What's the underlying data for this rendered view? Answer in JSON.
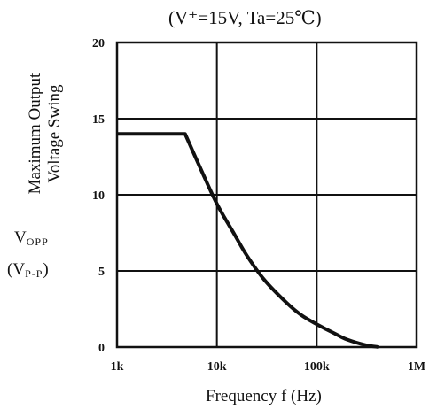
{
  "chart_data": {
    "type": "line",
    "title": "(V⁺=15V, Ta=25℃)",
    "ylabel_line1": "Maximum Output",
    "ylabel_line2": "Voltage Swing",
    "ylabel_symbol_main": "V",
    "ylabel_symbol_sub": "OPP",
    "ylabel_unit_main": "(V",
    "ylabel_unit_sub": "P-P",
    "ylabel_unit_close": ")",
    "xlabel": "Frequency f (Hz)",
    "x_scale": "log",
    "xlim": [
      1000,
      1000000
    ],
    "ylim": [
      0,
      20
    ],
    "x_ticks": [
      1000,
      10000,
      100000,
      1000000
    ],
    "x_tick_labels": [
      "1k",
      "10k",
      "100k",
      "1M"
    ],
    "y_ticks": [
      0,
      5,
      10,
      15,
      20
    ],
    "y_tick_labels": [
      "0",
      "5",
      "10",
      "15",
      "20"
    ],
    "grid": true,
    "series": [
      {
        "color": "#111111",
        "x": [
          1000,
          4800,
          7000,
          10000,
          15000,
          20000,
          30000,
          50000,
          70000,
          100000,
          150000,
          200000,
          300000,
          420000
        ],
        "y": [
          14,
          14,
          11.6,
          9.4,
          7.4,
          6.0,
          4.4,
          2.9,
          2.1,
          1.5,
          0.9,
          0.5,
          0.15,
          0
        ]
      }
    ]
  }
}
